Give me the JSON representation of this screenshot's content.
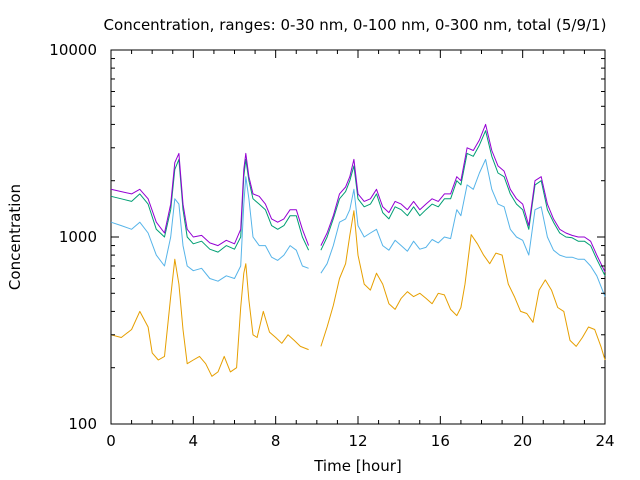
{
  "chart_data": {
    "type": "line",
    "title": "Concentration, ranges: 0-30 nm, 0-100 nm, 0-300 nm, total (5/9/1)",
    "xlabel": "Time [hour]",
    "ylabel": "Concentration",
    "xlim": [
      0,
      24
    ],
    "ylim": [
      100,
      10000
    ],
    "y_scale": "log",
    "grid": false,
    "legend": "none",
    "x_ticks": [
      "0",
      "4",
      "8",
      "12",
      "16",
      "20",
      "24"
    ],
    "y_ticks": [
      "100",
      "1000",
      "10000"
    ],
    "series": [
      {
        "color": "#e69f00",
        "x": [
          0,
          0.5,
          1,
          1.4,
          1.8,
          2.0,
          2.3,
          2.6,
          2.9,
          3.1,
          3.3,
          3.5,
          3.7,
          4.0,
          4.3,
          4.6,
          4.9,
          5.2,
          5.5,
          5.8,
          6.1,
          6.3,
          6.45,
          6.55,
          6.7,
          6.9,
          7.1,
          7.4,
          7.7,
          8.0,
          8.3,
          8.6,
          8.9,
          9.2,
          9.6
        ],
        "y": [
          300,
          290,
          320,
          400,
          330,
          240,
          220,
          230,
          480,
          760,
          560,
          320,
          210,
          220,
          230,
          210,
          180,
          190,
          230,
          190,
          200,
          420,
          640,
          720,
          460,
          300,
          290,
          400,
          310,
          290,
          270,
          300,
          280,
          260,
          250
        ]
      },
      {
        "color": "#e69f00",
        "x": [
          10.2,
          10.5,
          10.8,
          11.1,
          11.4,
          11.6,
          11.8,
          12.0,
          12.3,
          12.6,
          12.9,
          13.2,
          13.5,
          13.8,
          14.1,
          14.4,
          14.7,
          15.0,
          15.3,
          15.6,
          15.9,
          16.2,
          16.5,
          16.8,
          17.0,
          17.2,
          17.5,
          17.8,
          18.1,
          18.4,
          18.7,
          19.0,
          19.3,
          19.6,
          19.9,
          20.2,
          20.5,
          20.8,
          21.1,
          21.4,
          21.7,
          22.0,
          22.3,
          22.6,
          22.9,
          23.2,
          23.5,
          23.8,
          24.0
        ],
        "y": [
          260,
          330,
          430,
          600,
          720,
          1020,
          1380,
          800,
          560,
          520,
          640,
          560,
          440,
          410,
          470,
          510,
          480,
          500,
          470,
          440,
          500,
          490,
          410,
          380,
          420,
          560,
          1030,
          920,
          800,
          720,
          820,
          800,
          560,
          480,
          400,
          390,
          350,
          520,
          590,
          520,
          420,
          400,
          280,
          260,
          290,
          330,
          320,
          260,
          220
        ]
      },
      {
        "color": "#56b4e9",
        "x": [
          0,
          0.5,
          1,
          1.4,
          1.8,
          2.2,
          2.6,
          2.9,
          3.1,
          3.3,
          3.5,
          3.7,
          4.0,
          4.4,
          4.8,
          5.2,
          5.6,
          6.0,
          6.3,
          6.45,
          6.55,
          6.7,
          6.9,
          7.2,
          7.5,
          7.8,
          8.1,
          8.4,
          8.7,
          9.0,
          9.3,
          9.6
        ],
        "y": [
          1200,
          1150,
          1100,
          1200,
          1050,
          800,
          700,
          1000,
          1600,
          1500,
          900,
          700,
          660,
          680,
          600,
          580,
          620,
          600,
          700,
          1500,
          2100,
          1600,
          1000,
          900,
          900,
          780,
          750,
          800,
          900,
          850,
          700,
          680
        ]
      },
      {
        "color": "#56b4e9",
        "x": [
          10.2,
          10.5,
          10.8,
          11.1,
          11.4,
          11.6,
          11.8,
          12.0,
          12.3,
          12.6,
          12.9,
          13.2,
          13.5,
          13.8,
          14.1,
          14.4,
          14.7,
          15.0,
          15.3,
          15.6,
          15.9,
          16.2,
          16.5,
          16.8,
          17.0,
          17.3,
          17.6,
          17.9,
          18.2,
          18.5,
          18.8,
          19.1,
          19.4,
          19.7,
          20.0,
          20.3,
          20.6,
          20.9,
          21.2,
          21.5,
          21.8,
          22.1,
          22.4,
          22.7,
          23.0,
          23.3,
          23.6,
          24.0
        ],
        "y": [
          640,
          720,
          900,
          1200,
          1250,
          1400,
          1800,
          1150,
          1000,
          1050,
          1100,
          900,
          850,
          960,
          900,
          840,
          950,
          860,
          880,
          970,
          930,
          1000,
          980,
          1400,
          1300,
          1900,
          1800,
          2200,
          2600,
          1800,
          1500,
          1450,
          1100,
          1000,
          960,
          800,
          1400,
          1450,
          1000,
          850,
          800,
          780,
          780,
          760,
          760,
          700,
          620,
          480
        ]
      },
      {
        "color": "#009e73",
        "x": [
          0,
          0.5,
          1,
          1.4,
          1.8,
          2.2,
          2.6,
          2.9,
          3.1,
          3.3,
          3.5,
          3.7,
          4.0,
          4.4,
          4.8,
          5.2,
          5.6,
          6.0,
          6.3,
          6.45,
          6.55,
          6.7,
          6.9,
          7.2,
          7.5,
          7.8,
          8.1,
          8.4,
          8.7,
          9.0,
          9.3,
          9.6
        ],
        "y": [
          1650,
          1600,
          1550,
          1700,
          1500,
          1100,
          1000,
          1400,
          2300,
          2600,
          1400,
          1000,
          920,
          950,
          860,
          830,
          900,
          860,
          1000,
          2100,
          2600,
          2000,
          1600,
          1500,
          1400,
          1150,
          1100,
          1150,
          1300,
          1300,
          1000,
          850
        ]
      },
      {
        "color": "#009e73",
        "x": [
          10.2,
          10.5,
          10.8,
          11.1,
          11.4,
          11.6,
          11.8,
          12.0,
          12.3,
          12.6,
          12.9,
          13.2,
          13.5,
          13.8,
          14.1,
          14.4,
          14.7,
          15.0,
          15.3,
          15.6,
          15.9,
          16.2,
          16.5,
          16.8,
          17.0,
          17.3,
          17.6,
          17.9,
          18.2,
          18.5,
          18.8,
          19.1,
          19.4,
          19.7,
          20.0,
          20.3,
          20.6,
          20.9,
          21.2,
          21.5,
          21.8,
          22.1,
          22.4,
          22.7,
          23.0,
          23.3,
          23.6,
          24.0
        ],
        "y": [
          850,
          1000,
          1250,
          1600,
          1750,
          2000,
          2400,
          1600,
          1450,
          1500,
          1700,
          1350,
          1250,
          1450,
          1400,
          1300,
          1450,
          1300,
          1400,
          1500,
          1450,
          1600,
          1600,
          2000,
          1900,
          2800,
          2700,
          3100,
          3700,
          2700,
          2200,
          2100,
          1700,
          1500,
          1400,
          1100,
          1900,
          2000,
          1400,
          1200,
          1050,
          1000,
          990,
          950,
          950,
          900,
          760,
          620
        ]
      },
      {
        "color": "#9400d3",
        "x": [
          0,
          0.5,
          1,
          1.4,
          1.8,
          2.2,
          2.6,
          2.9,
          3.1,
          3.3,
          3.5,
          3.7,
          4.0,
          4.4,
          4.8,
          5.2,
          5.6,
          6.0,
          6.3,
          6.45,
          6.55,
          6.7,
          6.9,
          7.2,
          7.5,
          7.8,
          8.1,
          8.4,
          8.7,
          9.0,
          9.3,
          9.6
        ],
        "y": [
          1800,
          1750,
          1700,
          1800,
          1600,
          1200,
          1050,
          1500,
          2500,
          2800,
          1500,
          1100,
          1000,
          1020,
          930,
          900,
          960,
          920,
          1100,
          2300,
          2800,
          2100,
          1700,
          1650,
          1500,
          1250,
          1200,
          1250,
          1400,
          1400,
          1100,
          900
        ]
      },
      {
        "color": "#9400d3",
        "x": [
          10.2,
          10.5,
          10.8,
          11.1,
          11.4,
          11.6,
          11.8,
          12.0,
          12.3,
          12.6,
          12.9,
          13.2,
          13.5,
          13.8,
          14.1,
          14.4,
          14.7,
          15.0,
          15.3,
          15.6,
          15.9,
          16.2,
          16.5,
          16.8,
          17.0,
          17.3,
          17.6,
          17.9,
          18.2,
          18.5,
          18.8,
          19.1,
          19.4,
          19.7,
          20.0,
          20.3,
          20.6,
          20.9,
          21.2,
          21.5,
          21.8,
          22.1,
          22.4,
          22.7,
          23.0,
          23.3,
          23.6,
          24.0
        ],
        "y": [
          900,
          1050,
          1300,
          1700,
          1850,
          2100,
          2600,
          1700,
          1550,
          1600,
          1800,
          1450,
          1350,
          1550,
          1500,
          1400,
          1550,
          1400,
          1500,
          1600,
          1550,
          1700,
          1700,
          2100,
          2000,
          3000,
          2900,
          3300,
          4000,
          2900,
          2400,
          2250,
          1800,
          1600,
          1500,
          1150,
          2000,
          2100,
          1500,
          1250,
          1100,
          1050,
          1020,
          1000,
          1000,
          950,
          800,
          650
        ]
      }
    ]
  }
}
